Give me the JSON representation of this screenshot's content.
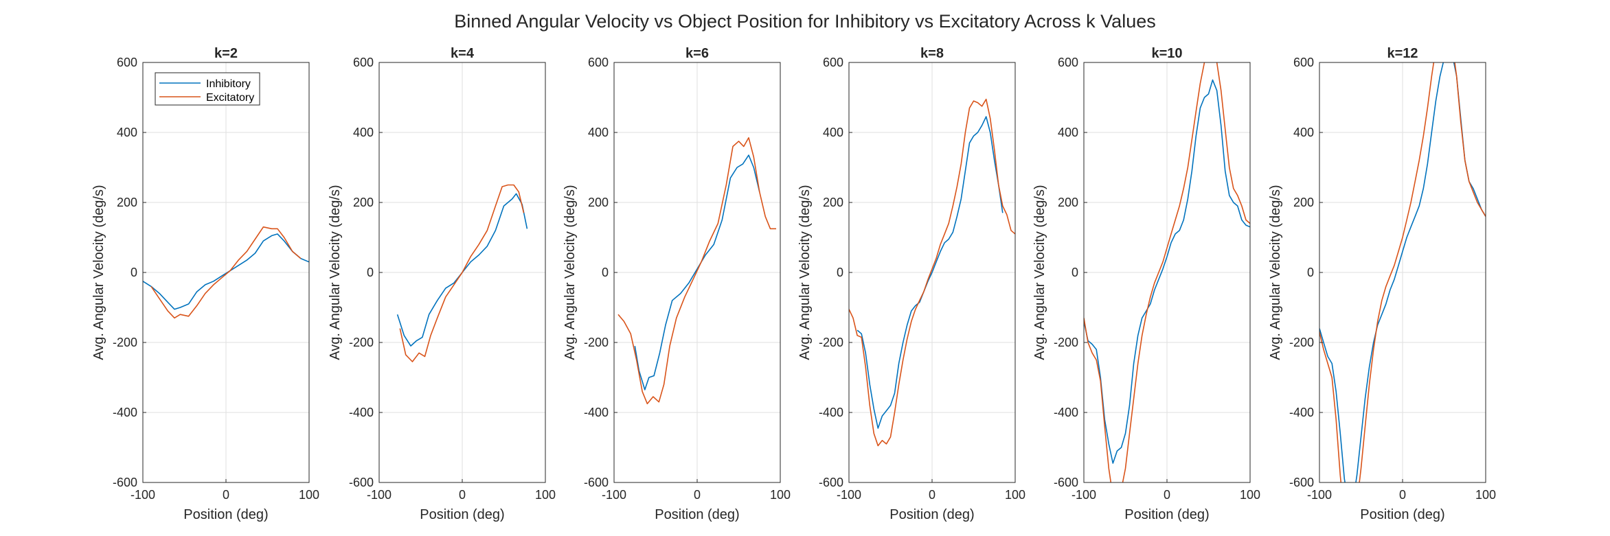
{
  "figure": {
    "title": "Binned Angular Velocity vs Object Position for Inhibitory vs Excitatory Across k Values"
  },
  "colors": {
    "inhibitory": "#0072BD",
    "excitatory": "#D95319",
    "axis": "#262626",
    "grid": "#dfdfdf"
  },
  "legend": {
    "placement": "top-left",
    "items": [
      "Inhibitory",
      "Excitatory"
    ]
  },
  "chart_data": [
    {
      "type": "line",
      "title": "k=2",
      "xlabel": "Position (deg)",
      "ylabel": "Avg. Angular Velocity (deg/s)",
      "xlim": [
        -100,
        100
      ],
      "ylim": [
        -600,
        600
      ],
      "xticks": [
        -100,
        0,
        100
      ],
      "yticks": [
        -600,
        -400,
        -200,
        0,
        200,
        400,
        600
      ],
      "grid": true,
      "legend": true,
      "series": [
        {
          "name": "Inhibitory",
          "x": [
            -100,
            -90,
            -80,
            -70,
            -62,
            -55,
            -45,
            -35,
            -25,
            -15,
            -5,
            5,
            15,
            25,
            35,
            45,
            55,
            62,
            70,
            80,
            90,
            100
          ],
          "values": [
            -25,
            -40,
            -60,
            -85,
            -105,
            -100,
            -90,
            -55,
            -35,
            -25,
            -10,
            5,
            20,
            35,
            55,
            90,
            105,
            110,
            90,
            60,
            40,
            30
          ]
        },
        {
          "name": "Excitatory",
          "x": [
            -90,
            -80,
            -70,
            -62,
            -55,
            -45,
            -35,
            -25,
            -15,
            -5,
            5,
            15,
            25,
            35,
            45,
            55,
            62,
            70,
            80,
            90
          ],
          "values": [
            -40,
            -75,
            -110,
            -130,
            -120,
            -125,
            -95,
            -60,
            -35,
            -15,
            5,
            35,
            60,
            95,
            130,
            125,
            125,
            100,
            60,
            40
          ]
        }
      ]
    },
    {
      "type": "line",
      "title": "k=4",
      "xlabel": "Position (deg)",
      "ylabel": "Avg. Angular Velocity (deg/s)",
      "xlim": [
        -100,
        100
      ],
      "ylim": [
        -600,
        600
      ],
      "xticks": [
        -100,
        0,
        100
      ],
      "yticks": [
        -600,
        -400,
        -200,
        0,
        200,
        400,
        600
      ],
      "grid": true,
      "legend": false,
      "series": [
        {
          "name": "Inhibitory",
          "x": [
            -78,
            -70,
            -62,
            -55,
            -48,
            -40,
            -30,
            -20,
            -10,
            0,
            10,
            20,
            30,
            40,
            50,
            60,
            65,
            72,
            78
          ],
          "values": [
            -120,
            -180,
            -210,
            -195,
            -185,
            -120,
            -80,
            -45,
            -30,
            0,
            30,
            50,
            75,
            120,
            190,
            210,
            225,
            195,
            125
          ]
        },
        {
          "name": "Excitatory",
          "x": [
            -75,
            -68,
            -60,
            -52,
            -45,
            -38,
            -30,
            -20,
            -10,
            0,
            10,
            20,
            30,
            40,
            48,
            55,
            62,
            68,
            74
          ],
          "values": [
            -160,
            -235,
            -255,
            -230,
            -240,
            -180,
            -130,
            -70,
            -35,
            0,
            45,
            80,
            120,
            190,
            245,
            250,
            250,
            230,
            170
          ]
        }
      ]
    },
    {
      "type": "line",
      "title": "k=6",
      "xlabel": "Position (deg)",
      "ylabel": "Avg. Angular Velocity (deg/s)",
      "xlim": [
        -100,
        100
      ],
      "ylim": [
        -600,
        600
      ],
      "xticks": [
        -100,
        0,
        100
      ],
      "yticks": [
        -600,
        -400,
        -200,
        0,
        200,
        400,
        600
      ],
      "grid": true,
      "legend": false,
      "series": [
        {
          "name": "Inhibitory",
          "x": [
            -75,
            -70,
            -63,
            -58,
            -52,
            -45,
            -38,
            -30,
            -20,
            -10,
            0,
            10,
            20,
            30,
            40,
            48,
            55,
            62,
            68,
            75
          ],
          "values": [
            -210,
            -280,
            -335,
            -300,
            -295,
            -230,
            -150,
            -80,
            -60,
            -30,
            10,
            50,
            80,
            150,
            270,
            300,
            310,
            335,
            300,
            230
          ]
        },
        {
          "name": "Excitatory",
          "x": [
            -95,
            -88,
            -80,
            -73,
            -66,
            -60,
            -53,
            -46,
            -40,
            -33,
            -25,
            -15,
            -5,
            5,
            15,
            25,
            35,
            43,
            50,
            56,
            62,
            68,
            75,
            82,
            88,
            95
          ],
          "values": [
            -120,
            -140,
            -175,
            -250,
            -340,
            -375,
            -355,
            -370,
            -320,
            -210,
            -130,
            -70,
            -20,
            30,
            90,
            140,
            250,
            360,
            375,
            360,
            385,
            330,
            230,
            160,
            125,
            125
          ]
        }
      ]
    },
    {
      "type": "line",
      "title": "k=8",
      "xlabel": "Position (deg)",
      "ylabel": "Avg. Angular Velocity (deg/s)",
      "xlim": [
        -100,
        100
      ],
      "ylim": [
        -600,
        600
      ],
      "xticks": [
        -100,
        0,
        100
      ],
      "yticks": [
        -600,
        -400,
        -200,
        0,
        200,
        400,
        600
      ],
      "grid": true,
      "legend": false,
      "series": [
        {
          "name": "Inhibitory",
          "x": [
            -90,
            -85,
            -80,
            -75,
            -70,
            -65,
            -60,
            -55,
            -50,
            -45,
            -40,
            -35,
            -30,
            -25,
            -20,
            -15,
            -10,
            -5,
            0,
            5,
            10,
            15,
            20,
            25,
            30,
            35,
            40,
            45,
            50,
            55,
            60,
            65,
            70,
            75,
            80,
            85
          ],
          "values": [
            -165,
            -175,
            -230,
            -320,
            -390,
            -445,
            -410,
            -395,
            -380,
            -345,
            -260,
            -200,
            -150,
            -110,
            -95,
            -85,
            -55,
            -25,
            0,
            30,
            60,
            85,
            95,
            115,
            160,
            210,
            290,
            370,
            390,
            400,
            420,
            445,
            400,
            320,
            250,
            170
          ]
        },
        {
          "name": "Excitatory",
          "x": [
            -100,
            -95,
            -90,
            -85,
            -80,
            -75,
            -70,
            -65,
            -60,
            -55,
            -50,
            -45,
            -40,
            -35,
            -30,
            -25,
            -20,
            -15,
            -10,
            -5,
            0,
            5,
            10,
            15,
            20,
            25,
            30,
            35,
            40,
            45,
            50,
            55,
            60,
            65,
            70,
            75,
            80,
            85,
            90,
            95,
            100
          ],
          "values": [
            -105,
            -130,
            -180,
            -185,
            -270,
            -380,
            -460,
            -495,
            -480,
            -490,
            -470,
            -400,
            -320,
            -250,
            -190,
            -140,
            -105,
            -80,
            -55,
            -20,
            10,
            40,
            80,
            110,
            140,
            190,
            245,
            310,
            400,
            470,
            490,
            485,
            475,
            495,
            440,
            350,
            250,
            190,
            165,
            120,
            110
          ]
        }
      ]
    },
    {
      "type": "line",
      "title": "k=10",
      "xlabel": "Position (deg)",
      "ylabel": "Avg. Angular Velocity (deg/s)",
      "xlim": [
        -100,
        100
      ],
      "ylim": [
        -600,
        600
      ],
      "xticks": [
        -100,
        0,
        100
      ],
      "yticks": [
        -600,
        -400,
        -200,
        0,
        200,
        400,
        600
      ],
      "grid": true,
      "legend": false,
      "series": [
        {
          "name": "Inhibitory",
          "x": [
            -100,
            -95,
            -90,
            -85,
            -80,
            -75,
            -70,
            -65,
            -60,
            -55,
            -50,
            -45,
            -40,
            -35,
            -30,
            -25,
            -20,
            -15,
            -10,
            -5,
            0,
            5,
            10,
            15,
            20,
            25,
            30,
            35,
            40,
            45,
            50,
            55,
            60,
            65,
            70,
            75,
            80,
            85,
            90,
            95,
            100
          ],
          "values": [
            -140,
            -195,
            -205,
            -220,
            -300,
            -420,
            -490,
            -545,
            -510,
            -500,
            -460,
            -380,
            -260,
            -180,
            -130,
            -110,
            -90,
            -50,
            -20,
            10,
            45,
            85,
            110,
            120,
            150,
            210,
            290,
            390,
            470,
            500,
            510,
            550,
            520,
            420,
            290,
            220,
            200,
            190,
            150,
            135,
            130
          ]
        },
        {
          "name": "Excitatory",
          "x": [
            -100,
            -95,
            -90,
            -85,
            -80,
            -75,
            -70,
            -65,
            -60,
            -55,
            -50,
            -45,
            -40,
            -35,
            -30,
            -25,
            -20,
            -15,
            -10,
            -5,
            0,
            5,
            10,
            15,
            20,
            25,
            30,
            35,
            40,
            45,
            50,
            55,
            60,
            65,
            70,
            75,
            80,
            85,
            90,
            95,
            100
          ],
          "values": [
            -130,
            -200,
            -230,
            -250,
            -310,
            -440,
            -560,
            -640,
            -660,
            -620,
            -560,
            -460,
            -360,
            -260,
            -180,
            -120,
            -70,
            -30,
            0,
            30,
            70,
            110,
            150,
            190,
            240,
            300,
            380,
            460,
            540,
            600,
            640,
            640,
            600,
            520,
            410,
            300,
            240,
            220,
            190,
            150,
            140
          ]
        }
      ]
    },
    {
      "type": "line",
      "title": "k=12",
      "xlabel": "Position (deg)",
      "ylabel": "Avg. Angular Velocity (deg/s)",
      "xlim": [
        -100,
        100
      ],
      "ylim": [
        -600,
        600
      ],
      "xticks": [
        -100,
        0,
        100
      ],
      "yticks": [
        -600,
        -400,
        -200,
        0,
        200,
        400,
        600
      ],
      "grid": true,
      "legend": false,
      "series": [
        {
          "name": "Inhibitory",
          "x": [
            -100,
            -95,
            -90,
            -85,
            -80,
            -75,
            -70,
            -65,
            -60,
            -55,
            -50,
            -45,
            -40,
            -35,
            -30,
            -25,
            -20,
            -15,
            -10,
            -5,
            0,
            5,
            10,
            15,
            20,
            25,
            30,
            35,
            40,
            45,
            50,
            55,
            60,
            65,
            70,
            75,
            80,
            85,
            90,
            95,
            100
          ],
          "values": [
            -160,
            -200,
            -240,
            -260,
            -340,
            -460,
            -590,
            -660,
            -660,
            -580,
            -470,
            -360,
            -270,
            -200,
            -150,
            -120,
            -90,
            -50,
            -20,
            20,
            60,
            100,
            130,
            160,
            190,
            240,
            310,
            400,
            490,
            560,
            610,
            620,
            620,
            560,
            440,
            320,
            260,
            240,
            210,
            180,
            160
          ]
        },
        {
          "name": "Excitatory",
          "x": [
            -100,
            -95,
            -90,
            -85,
            -80,
            -75,
            -70,
            -65,
            -60,
            -55,
            -50,
            -45,
            -40,
            -35,
            -30,
            -25,
            -20,
            -15,
            -10,
            -5,
            0,
            5,
            10,
            15,
            20,
            25,
            30,
            35,
            40,
            45,
            50,
            55,
            60,
            65,
            70,
            75,
            80,
            85,
            90,
            95,
            100
          ],
          "values": [
            -170,
            -220,
            -260,
            -300,
            -420,
            -580,
            -700,
            -760,
            -720,
            -660,
            -560,
            -440,
            -320,
            -220,
            -140,
            -80,
            -40,
            -10,
            20,
            60,
            100,
            150,
            200,
            260,
            320,
            390,
            470,
            560,
            640,
            700,
            720,
            700,
            650,
            560,
            430,
            320,
            260,
            230,
            200,
            180,
            160
          ]
        }
      ]
    }
  ]
}
